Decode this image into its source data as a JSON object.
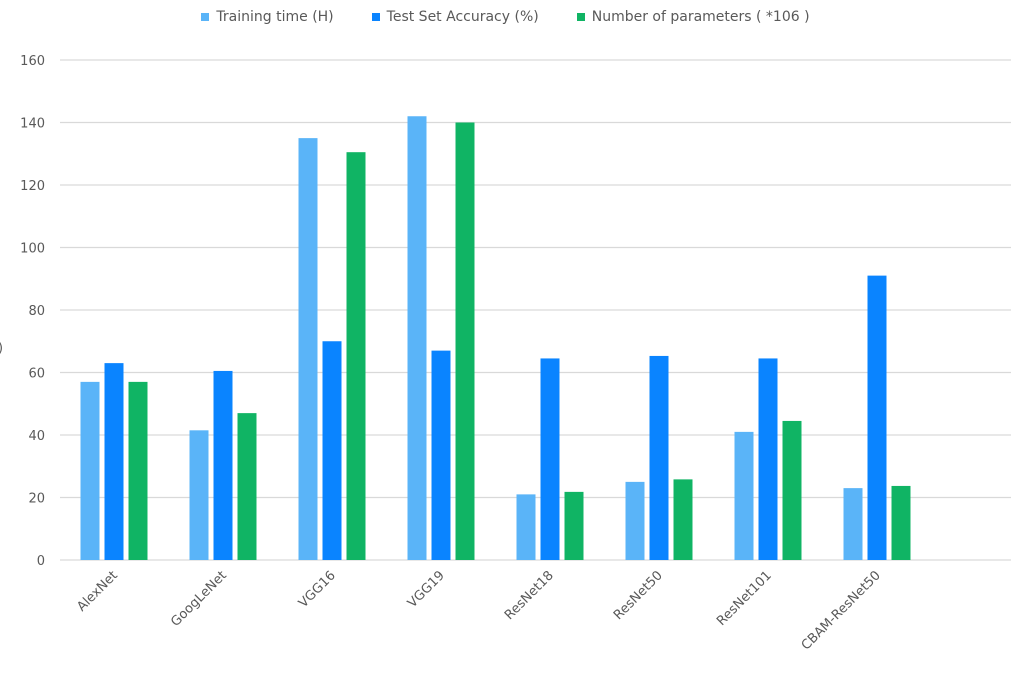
{
  "chart_data": {
    "type": "bar",
    "title": "",
    "xlabel": "",
    "ylabel": ")",
    "ylim": [
      0,
      160
    ],
    "yticks": [
      0,
      20,
      40,
      60,
      80,
      100,
      120,
      140,
      160
    ],
    "grid": true,
    "legend_position": "top",
    "categories": [
      "AlexNet",
      "GoogLeNet",
      "VGG16",
      "VGG19",
      "ResNet18",
      "ResNet50",
      "ResNet101",
      "CBAM-ResNet50"
    ],
    "series": [
      {
        "name": "Training time (H)",
        "color": "#5ab4f8",
        "values": [
          57,
          41.5,
          135,
          142,
          21,
          25,
          41,
          23
        ]
      },
      {
        "name": "Test Set Accuracy (%)",
        "color": "#0a84ff",
        "values": [
          63,
          60.5,
          70,
          67,
          64.5,
          65.3,
          64.5,
          91
        ]
      },
      {
        "name": "Number of parameters ( *106 )",
        "color": "#10b464",
        "values": [
          57,
          47,
          130.5,
          140,
          21.8,
          25.8,
          44.5,
          23.7
        ]
      }
    ]
  }
}
